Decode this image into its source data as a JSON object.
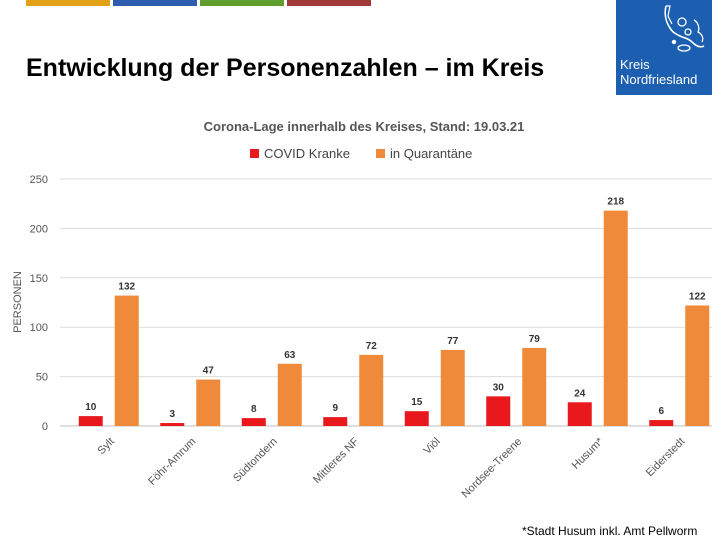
{
  "header": {
    "title": "Entwicklung der Personenzahlen – im Kreis",
    "bar_colors": [
      "#e3a118",
      "#2e5db0",
      "#5f9d2c",
      "#a13a37"
    ]
  },
  "logo": {
    "line1": "Kreis",
    "line2": "Nordfriesland",
    "icon": "nordfriesland-map-icon",
    "background": "#1c5fb0"
  },
  "footnote": "*Stadt Husum inkl. Amt Pellworm",
  "chart_data": {
    "type": "bar",
    "title": "Corona-Lage innerhalb des Kreises, Stand: 19.03.21",
    "xlabel": "",
    "ylabel": "PERSONEN",
    "ylim": [
      0,
      250
    ],
    "yticks": [
      0,
      50,
      100,
      150,
      200,
      250
    ],
    "grid": true,
    "legend_position": "top",
    "categories": [
      "Sylt",
      "Föhr-Amrum",
      "Südtondern",
      "Mittleres NF",
      "Viöl",
      "Nordsee-Treene",
      "Husum*",
      "Eiderstedt"
    ],
    "series": [
      {
        "name": "COVID Kranke",
        "color": "#e8181c",
        "values": [
          10,
          3,
          8,
          9,
          15,
          30,
          24,
          6
        ]
      },
      {
        "name": "in Quarantäne",
        "color": "#ef8a3a",
        "values": [
          132,
          47,
          63,
          72,
          77,
          79,
          218,
          122
        ]
      }
    ]
  }
}
